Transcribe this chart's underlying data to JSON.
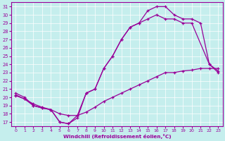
{
  "xlabel": "Windchill (Refroidissement éolien,°C)",
  "bg_color": "#c5eeed",
  "line_color": "#990099",
  "xlim": [
    -0.5,
    23.5
  ],
  "ylim": [
    16.5,
    31.5
  ],
  "xticks": [
    0,
    1,
    2,
    3,
    4,
    5,
    6,
    7,
    8,
    9,
    10,
    11,
    12,
    13,
    14,
    15,
    16,
    17,
    18,
    19,
    20,
    21,
    22,
    23
  ],
  "yticks": [
    17,
    18,
    19,
    20,
    21,
    22,
    23,
    24,
    25,
    26,
    27,
    28,
    29,
    30,
    31
  ],
  "curve1_x": [
    0,
    1,
    2,
    3,
    4,
    5,
    6,
    7,
    8,
    9,
    10,
    11,
    12,
    13,
    14,
    15,
    16,
    17,
    18,
    19,
    20,
    21,
    22,
    23
  ],
  "curve1_y": [
    20.5,
    20.0,
    19.0,
    18.7,
    18.5,
    17.0,
    16.8,
    17.5,
    20.5,
    21.0,
    23.5,
    25.0,
    27.0,
    28.5,
    29.0,
    30.5,
    31.0,
    31.0,
    30.0,
    29.5,
    29.5,
    29.0,
    24.0,
    23.2
  ],
  "curve2_x": [
    0,
    1,
    2,
    3,
    4,
    5,
    6,
    7,
    8,
    9,
    10,
    11,
    12,
    13,
    14,
    15,
    16,
    17,
    18,
    19,
    20,
    22,
    23
  ],
  "curve2_y": [
    20.2,
    19.8,
    19.0,
    18.7,
    18.5,
    17.0,
    16.8,
    17.8,
    20.5,
    21.0,
    23.5,
    25.0,
    27.0,
    28.5,
    29.0,
    29.5,
    30.0,
    29.5,
    29.5,
    29.0,
    29.0,
    24.0,
    23.0
  ],
  "curve3_x": [
    0,
    1,
    2,
    3,
    4,
    5,
    6,
    7,
    8,
    9,
    10,
    11,
    12,
    13,
    14,
    15,
    16,
    17,
    18,
    19,
    20,
    21,
    22,
    23
  ],
  "curve3_y": [
    20.3,
    19.8,
    19.2,
    18.8,
    18.5,
    18.0,
    17.8,
    17.8,
    18.2,
    18.8,
    19.5,
    20.0,
    20.5,
    21.0,
    21.5,
    22.0,
    22.5,
    23.0,
    23.0,
    23.2,
    23.3,
    23.5,
    23.5,
    23.5
  ]
}
